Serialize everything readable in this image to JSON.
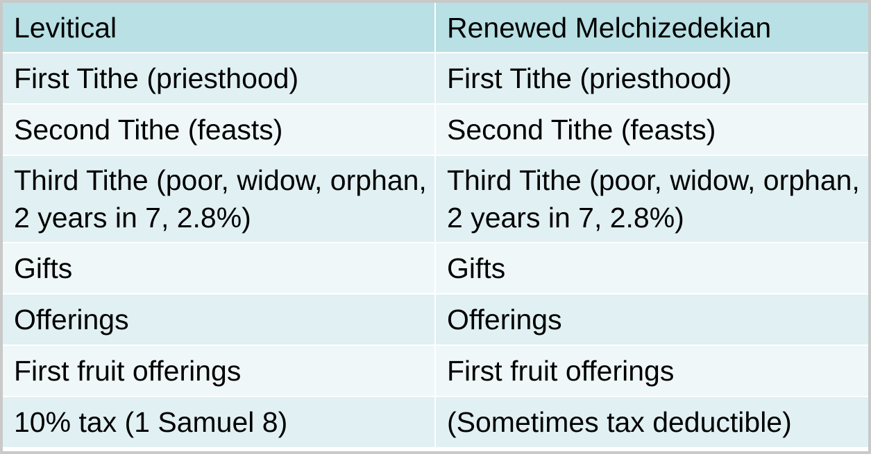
{
  "table": {
    "header": [
      "Levitical",
      "Renewed Melchizedekian"
    ],
    "rows": [
      [
        "First Tithe (priesthood)",
        "First Tithe (priesthood)"
      ],
      [
        "Second Tithe (feasts)",
        "Second Tithe (feasts)"
      ],
      [
        "Third Tithe (poor, widow, orphan, 2 years in 7, 2.8%)",
        "Third Tithe (poor, widow, orphan, 2 years in 7, 2.8%)"
      ],
      [
        "Gifts",
        "Gifts"
      ],
      [
        "Offerings",
        "Offerings"
      ],
      [
        "First fruit offerings",
        "First fruit offerings"
      ],
      [
        "10% tax (1 Samuel 8)",
        "(Sometimes tax deductible)"
      ]
    ]
  }
}
